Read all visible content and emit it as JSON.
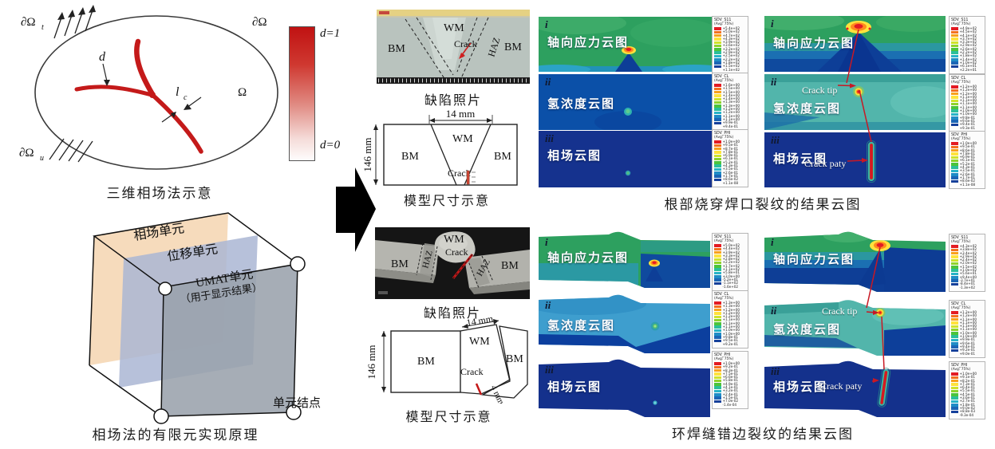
{
  "swatch_colors": [
    "#e31b23",
    "#f4711f",
    "#f9a11b",
    "#ffe23c",
    "#cfe32a",
    "#8fd32b",
    "#4cc43b",
    "#2bbf9a",
    "#27b4c8",
    "#1f8dc6",
    "#1b66b6",
    "#15409b"
  ],
  "phase_diagram": {
    "boundary_top_left": "∂Ω",
    "boundary_top_left_sub": "t",
    "boundary_top_right": "∂Ω",
    "domain": "Ω",
    "damage_label": "d",
    "length_scale": "l",
    "length_scale_sub": "c",
    "boundary_bottom_left": "∂Ω",
    "boundary_bottom_left_sub": "u",
    "colorbar_top": "d=1",
    "colorbar_bottom": "d=0",
    "caption": "三维相场法示意"
  },
  "fem_diagram": {
    "phase_plane": "相场单元",
    "disp_plane": "位移单元",
    "umat_line1": "UMAT单元",
    "umat_line2": "（用于显示结果）",
    "node_label": "单元结点",
    "caption": "相场法的有限元实现原理"
  },
  "groups": [
    {
      "photo": {
        "bm_left": "BM",
        "wm": "WM",
        "crack": "Crack",
        "haz": "HAZ",
        "bm_right": "BM",
        "caption": "缺陷照片"
      },
      "model": {
        "width_dim": "14 mm",
        "height_dim": "146 mm",
        "bm_left": "BM",
        "wm": "WM",
        "bm_right": "BM",
        "crack": "Crack",
        "caption": "模型尺寸示意"
      },
      "panels": [
        {
          "index": "i",
          "label": "轴向应力云图"
        },
        {
          "index": "ii",
          "label": "氢浓度云图"
        },
        {
          "index": "iii",
          "label": "相场云图"
        }
      ],
      "annotations": {
        "crack_tip": "Crack tip",
        "crack_path": "Crack paty"
      },
      "legends_left": [
        {
          "title": "SDV_S11",
          "avg": "(Avg: 75%)",
          "values": [
            "+5.4e+02",
            "+5.0e+02",
            "+4.7e+02",
            "+4.3e+02",
            "+3.9e+02",
            "+3.6e+02",
            "+3.2e+02",
            "+2.9e+02",
            "+2.5e+02",
            "+2.2e+02",
            "+1.8e+02",
            "+1.5e+02",
            "+1.1e+02"
          ]
        },
        {
          "title": "SDV_CL",
          "avg": "(Avg: 75%)",
          "values": [
            "+1.6e+00",
            "+1.5e+00",
            "+1.5e+00",
            "+1.4e+00",
            "+1.4e+00",
            "+1.3e+00",
            "+1.3e+00",
            "+1.2e+00",
            "+1.2e+00",
            "+1.1e+00",
            "+1.1e+00",
            "+9.9e-01",
            "+9.4e-01"
          ]
        },
        {
          "title": "SDV_PHI",
          "avg": "(Avg: 75%)",
          "values": [
            "+1.0e+00",
            "+9.5e-01",
            "+8.7e-01",
            "+7.8e-01",
            "+6.9e-01",
            "+6.1e-01",
            "+5.2e-01",
            "+4.3e-01",
            "+3.5e-01",
            "+2.6e-01",
            "+1.7e-01",
            "+8.6e-02",
            "+1.1e-08"
          ]
        }
      ],
      "legends_right": [
        {
          "title": "SDV_S11",
          "avg": "(Avg: 75%)",
          "values": [
            "+4.9e+02",
            "+4.5e+02",
            "+4.1e+02",
            "+3.7e+02",
            "+3.3e+02",
            "+2.9e+02",
            "+2.6e+02",
            "+2.2e+02",
            "+1.8e+02",
            "+1.4e+02",
            "+1.0e+02",
            "+6.1e+01",
            "+2.2e+01"
          ]
        },
        {
          "title": "SDV_CL",
          "avg": "(Avg: 75%)",
          "values": [
            "+1.2e+00",
            "+1.2e+00",
            "+1.2e+00",
            "+1.1e+00",
            "+1.1e+00",
            "+1.1e+00",
            "+1.1e+00",
            "+1.0e+00",
            "+1.0e+00",
            "+9.8e-01",
            "+9.6e-01",
            "+9.4e-01",
            "+9.3e-01"
          ]
        },
        {
          "title": "SDV_PHI",
          "avg": "(Avg: 75%)",
          "values": [
            "+1.0e+00",
            "+9.5e-01",
            "+8.6e-01",
            "+7.8e-01",
            "+6.9e-01",
            "+6.1e-01",
            "+5.2e-01",
            "+4.3e-01",
            "+3.5e-01",
            "+2.6e-01",
            "+1.7e-01",
            "+8.6e-02",
            "+1.1e-08"
          ]
        }
      ],
      "result_caption": "根部烧穿焊口裂纹的结果云图"
    },
    {
      "photo": {
        "bm_left": "BM",
        "wm": "WM",
        "crack": "Crack",
        "haz_left": "HAZ",
        "haz_right": "HAZ",
        "bm_right": "BM",
        "caption": "缺陷照片"
      },
      "model": {
        "width_dim": "14 mm",
        "height_dim": "146 mm",
        "crack_dim": "4 mm",
        "bm_left": "BM",
        "wm": "WM",
        "bm_right": "BM",
        "crack": "Crack",
        "caption": "模型尺寸示意"
      },
      "panels": [
        {
          "index": "i",
          "label": "轴向应力云图"
        },
        {
          "index": "ii",
          "label": "氢浓度云图"
        },
        {
          "index": "iii",
          "label": "相场云图"
        }
      ],
      "annotations": {
        "crack_tip": "Crack tip",
        "crack_path": "Crack paty"
      },
      "legends_left": [
        {
          "title": "SDV_S11",
          "avg": "(Avg: 75%)",
          "values": [
            "+5.0e+02",
            "+4.4e+02",
            "+3.9e+02",
            "+3.3e+02",
            "+2.8e+02",
            "+2.2e+02",
            "+1.7e+02",
            "+1.1e+02",
            "+5.8e+01",
            "+3.0e+00",
            "-5.2e+01",
            "-1.1e+02",
            "-1.6e+02"
          ]
        },
        {
          "title": "SDV_CL",
          "avg": "(Avg: 75%)",
          "values": [
            "+1.3e+00",
            "+1.3e+00",
            "+1.2e+00",
            "+1.2e+00",
            "+1.2e+00",
            "+1.1e+00",
            "+1.1e+00",
            "+1.1e+00",
            "+1.0e+00",
            "+1.0e+00",
            "+9.8e-01",
            "+9.5e-01",
            "+9.2e-01"
          ]
        },
        {
          "title": "SDV_PHI",
          "avg": "(Avg: 75%)",
          "values": [
            "+1.0e+00",
            "+9.2e-01",
            "+8.3e-01",
            "+7.5e-01",
            "+6.6e-01",
            "+5.8e-01",
            "+4.9e-01",
            "+4.1e-01",
            "+3.2e-01",
            "+2.4e-01",
            "+1.5e-01",
            "+7.0e-02",
            "-1.4e-04"
          ]
        }
      ],
      "legends_right": [
        {
          "title": "SDV_S11",
          "avg": "(Avg: 75%)",
          "values": [
            "+4.3e+02",
            "+3.8e+02",
            "+3.4e+02",
            "+2.9e+02",
            "+2.4e+02",
            "+2.0e+02",
            "+1.5e+02",
            "+1.0e+02",
            "+5.6e+01",
            "+9.4e+00",
            "-3.7e+01",
            "-8.4e+01",
            "-1.3e+02"
          ]
        },
        {
          "title": "SDV_CL",
          "avg": "(Avg: 75%)",
          "values": [
            "+1.2e+00",
            "+1.2e+00",
            "+1.1e+00",
            "+1.1e+00",
            "+1.1e+00",
            "+1.1e+00",
            "+1.0e+00",
            "+1.0e+00",
            "+9.9e-01",
            "+9.6e-01",
            "+9.4e-01",
            "+9.2e-01",
            "+9.0e-01"
          ]
        },
        {
          "title": "SDV_PHI",
          "avg": "(Avg: 75%)",
          "values": [
            "+1.0e+00",
            "+9.1e-01",
            "+8.2e-01",
            "+7.3e-01",
            "+6.4e-01",
            "+5.5e-01",
            "+4.5e-01",
            "+3.6e-01",
            "+2.7e-01",
            "+1.8e-01",
            "+9.0e-02",
            "+8.8e-03",
            "-9.3e-04"
          ]
        }
      ],
      "result_caption": "环焊缝错边裂纹的结果云图"
    }
  ]
}
